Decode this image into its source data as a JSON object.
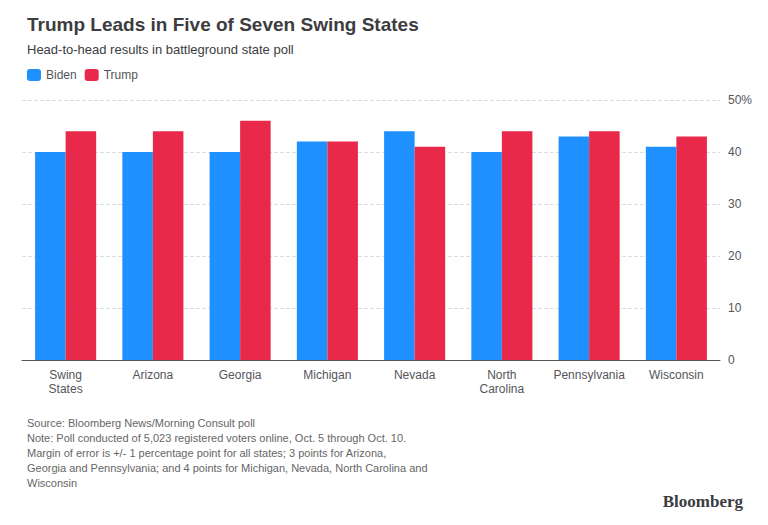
{
  "chart_data": {
    "type": "bar",
    "title": "Trump Leads in Five of Seven Swing States",
    "subtitle": "Head-to-head results in battleground state poll",
    "categories": [
      "Swing\nStates",
      "Arizona",
      "Georgia",
      "Michigan",
      "Nevada",
      "North\nCarolina",
      "Pennsylvania",
      "Wisconsin"
    ],
    "series": [
      {
        "name": "Biden",
        "color": "#1E90FF",
        "values": [
          40,
          40,
          40,
          42,
          44,
          40,
          43,
          41
        ]
      },
      {
        "name": "Trump",
        "color": "#E8294A",
        "values": [
          44,
          44,
          46,
          42,
          41,
          44,
          44,
          43
        ]
      }
    ],
    "ylim": [
      0,
      50
    ],
    "yticks": [
      0,
      10,
      20,
      30,
      40,
      {
        "value": 50,
        "label": "50%"
      }
    ],
    "grid": true,
    "legend": "upper left",
    "annotations": [
      "Source: Bloomberg News/Morning Consult poll\nNote: Poll conducted of 5,023 registered voters online, Oct. 5 through Oct. 10.\nMargin of error is +/- 1 percentage point for all states; 3 points for Arizona,\nGeorgia and Pennsylvania; and 4 points for Michigan, Nevada, North Carolina and\nWisconsin",
      "Bloomberg"
    ]
  }
}
